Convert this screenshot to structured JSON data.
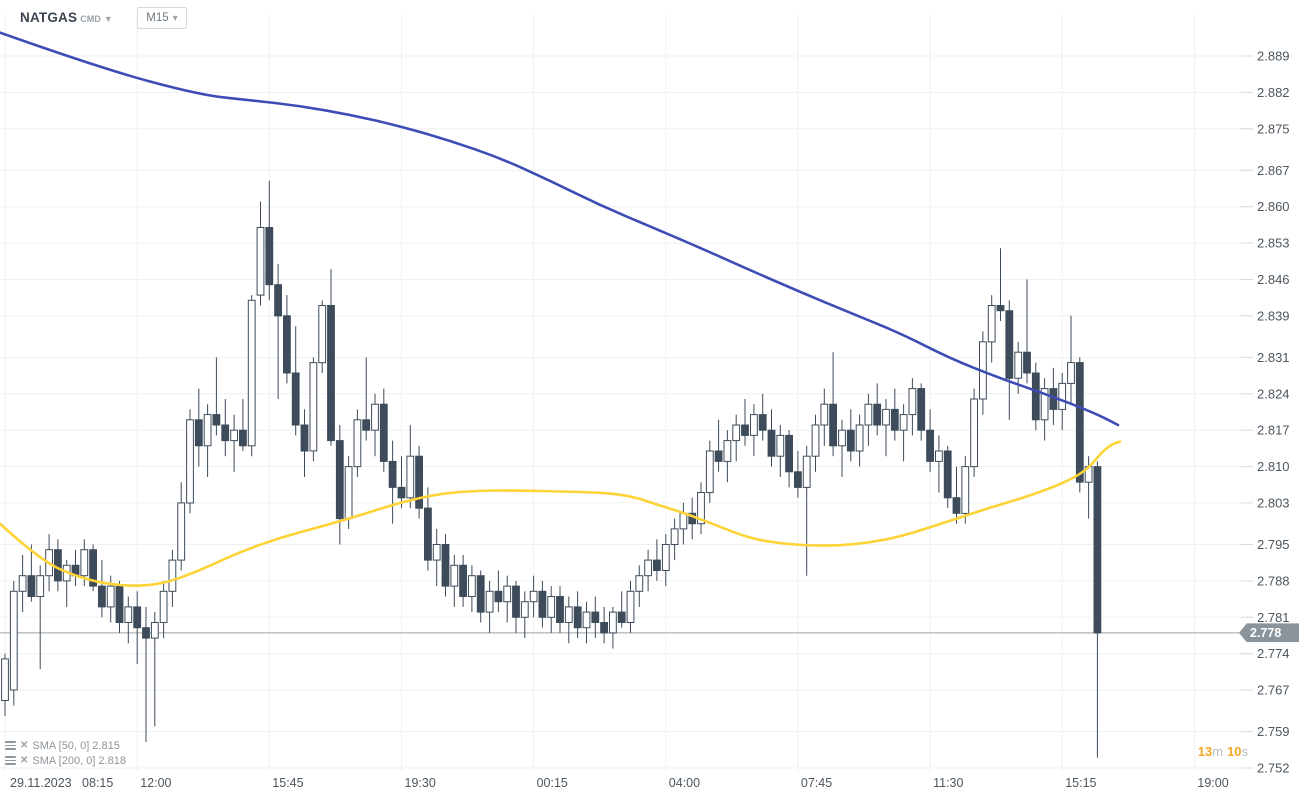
{
  "header": {
    "symbol": "NATGAS",
    "market": "CMD",
    "timeframe": "M15"
  },
  "legend": [
    {
      "label": "SMA [50, 0] 2.815"
    },
    {
      "label": "SMA [200, 0] 2.818"
    }
  ],
  "price_badge": "2.778",
  "countdown": {
    "minutes": "13",
    "minutes_unit": "m",
    "seconds": "10",
    "seconds_unit": "s"
  },
  "colors": {
    "candle": "#3d4b5a",
    "candle_bull_fill": "#ffffff",
    "sma50": "#fdd335",
    "sma200": "#3e4db5",
    "grid": "#eef1f4",
    "grid_stub": "#d8dbde",
    "axis_text": "#4c565f",
    "price_line": "#9aa2a8",
    "badge_bg": "#8b949b",
    "countdown_accent": "#f5a623",
    "legend_text": "#8d959c"
  },
  "chart_data": {
    "type": "candlestick",
    "title": "NATGAS CMD M15 candlestick chart with SMA(50) and SMA(200)",
    "instrument": "NATGAS",
    "timeframe": "M15",
    "current_price": 2.778,
    "y_range": [
      2.752,
      2.889
    ],
    "grid": true,
    "y_ticks": [
      "2.889",
      "2.882",
      "2.875",
      "2.867",
      "2.860",
      "2.853",
      "2.846",
      "2.839",
      "2.831",
      "2.824",
      "2.817",
      "2.810",
      "2.803",
      "2.795",
      "2.788",
      "2.781",
      "2.774",
      "2.767",
      "2.759",
      "2.752"
    ],
    "x_labels": [
      {
        "label": "29.11.2023  08:15",
        "candle_index": 0
      },
      {
        "label": "12:00",
        "candle_index": 15
      },
      {
        "label": "15:45",
        "candle_index": 30
      },
      {
        "label": "19:30",
        "candle_index": 45
      },
      {
        "label": "00:15",
        "candle_index": 60
      },
      {
        "label": "04:00",
        "candle_index": 75
      },
      {
        "label": "07:45",
        "candle_index": 90
      },
      {
        "label": "11:30",
        "candle_index": 105
      },
      {
        "label": "15:15",
        "candle_index": 120
      },
      {
        "label": "19:00",
        "candle_index": 135
      }
    ],
    "candles_format": [
      "open",
      "high",
      "low",
      "close"
    ],
    "candles": [
      [
        2.765,
        2.774,
        2.762,
        2.773
      ],
      [
        2.767,
        2.788,
        2.764,
        2.786
      ],
      [
        2.786,
        2.793,
        2.782,
        2.789
      ],
      [
        2.789,
        2.795,
        2.784,
        2.785
      ],
      [
        2.785,
        2.791,
        2.771,
        2.789
      ],
      [
        2.789,
        2.797,
        2.786,
        2.794
      ],
      [
        2.794,
        2.796,
        2.786,
        2.788
      ],
      [
        2.788,
        2.792,
        2.783,
        2.791
      ],
      [
        2.791,
        2.794,
        2.787,
        2.789
      ],
      [
        2.789,
        2.796,
        2.787,
        2.794
      ],
      [
        2.794,
        2.795,
        2.786,
        2.787
      ],
      [
        2.787,
        2.792,
        2.781,
        2.783
      ],
      [
        2.783,
        2.789,
        2.78,
        2.787
      ],
      [
        2.787,
        2.788,
        2.778,
        2.78
      ],
      [
        2.78,
        2.785,
        2.776,
        2.783
      ],
      [
        2.783,
        2.786,
        2.772,
        2.779
      ],
      [
        2.779,
        2.783,
        2.757,
        2.777
      ],
      [
        2.777,
        2.782,
        2.76,
        2.78
      ],
      [
        2.78,
        2.788,
        2.777,
        2.786
      ],
      [
        2.786,
        2.794,
        2.783,
        2.792
      ],
      [
        2.792,
        2.807,
        2.79,
        2.803
      ],
      [
        2.803,
        2.821,
        2.801,
        2.819
      ],
      [
        2.819,
        2.825,
        2.81,
        2.814
      ],
      [
        2.814,
        2.822,
        2.808,
        2.82
      ],
      [
        2.82,
        2.831,
        2.816,
        2.818
      ],
      [
        2.818,
        2.823,
        2.812,
        2.815
      ],
      [
        2.815,
        2.82,
        2.809,
        2.817
      ],
      [
        2.817,
        2.823,
        2.813,
        2.814
      ],
      [
        2.814,
        2.843,
        2.812,
        2.842
      ],
      [
        2.843,
        2.861,
        2.841,
        2.856
      ],
      [
        2.856,
        2.865,
        2.842,
        2.845
      ],
      [
        2.845,
        2.849,
        2.823,
        2.839
      ],
      [
        2.839,
        2.843,
        2.826,
        2.828
      ],
      [
        2.828,
        2.837,
        2.816,
        2.818
      ],
      [
        2.818,
        2.821,
        2.808,
        2.813
      ],
      [
        2.813,
        2.831,
        2.811,
        2.83
      ],
      [
        2.83,
        2.842,
        2.828,
        2.841
      ],
      [
        2.841,
        2.848,
        2.814,
        2.815
      ],
      [
        2.815,
        2.818,
        2.795,
        2.8
      ],
      [
        2.8,
        2.812,
        2.798,
        2.81
      ],
      [
        2.81,
        2.821,
        2.808,
        2.819
      ],
      [
        2.819,
        2.831,
        2.815,
        2.817
      ],
      [
        2.817,
        2.824,
        2.812,
        2.822
      ],
      [
        2.822,
        2.825,
        2.809,
        2.811
      ],
      [
        2.811,
        2.815,
        2.799,
        2.806
      ],
      [
        2.806,
        2.812,
        2.802,
        2.804
      ],
      [
        2.804,
        2.818,
        2.802,
        2.812
      ],
      [
        2.812,
        2.814,
        2.8,
        2.802
      ],
      [
        2.802,
        2.806,
        2.79,
        2.792
      ],
      [
        2.792,
        2.798,
        2.787,
        2.795
      ],
      [
        2.795,
        2.797,
        2.785,
        2.787
      ],
      [
        2.787,
        2.793,
        2.783,
        2.791
      ],
      [
        2.791,
        2.793,
        2.783,
        2.785
      ],
      [
        2.785,
        2.791,
        2.782,
        2.789
      ],
      [
        2.789,
        2.79,
        2.78,
        2.782
      ],
      [
        2.782,
        2.788,
        2.778,
        2.786
      ],
      [
        2.786,
        2.79,
        2.782,
        2.784
      ],
      [
        2.784,
        2.789,
        2.78,
        2.787
      ],
      [
        2.787,
        2.788,
        2.778,
        2.781
      ],
      [
        2.781,
        2.786,
        2.777,
        2.784
      ],
      [
        2.784,
        2.789,
        2.781,
        2.786
      ],
      [
        2.786,
        2.788,
        2.779,
        2.781
      ],
      [
        2.781,
        2.787,
        2.778,
        2.785
      ],
      [
        2.785,
        2.787,
        2.778,
        2.78
      ],
      [
        2.78,
        2.785,
        2.776,
        2.783
      ],
      [
        2.783,
        2.786,
        2.777,
        2.779
      ],
      [
        2.779,
        2.784,
        2.776,
        2.782
      ],
      [
        2.782,
        2.785,
        2.777,
        2.78
      ],
      [
        2.78,
        2.783,
        2.776,
        2.778
      ],
      [
        2.778,
        2.783,
        2.775,
        2.782
      ],
      [
        2.782,
        2.786,
        2.779,
        2.78
      ],
      [
        2.78,
        2.788,
        2.778,
        2.786
      ],
      [
        2.786,
        2.791,
        2.783,
        2.789
      ],
      [
        2.789,
        2.794,
        2.786,
        2.792
      ],
      [
        2.792,
        2.796,
        2.788,
        2.79
      ],
      [
        2.79,
        2.797,
        2.787,
        2.795
      ],
      [
        2.795,
        2.8,
        2.792,
        2.798
      ],
      [
        2.798,
        2.803,
        2.795,
        2.801
      ],
      [
        2.801,
        2.804,
        2.796,
        2.799
      ],
      [
        2.799,
        2.807,
        2.797,
        2.805
      ],
      [
        2.805,
        2.815,
        2.803,
        2.813
      ],
      [
        2.813,
        2.819,
        2.809,
        2.811
      ],
      [
        2.811,
        2.817,
        2.807,
        2.815
      ],
      [
        2.815,
        2.82,
        2.811,
        2.818
      ],
      [
        2.818,
        2.823,
        2.814,
        2.816
      ],
      [
        2.816,
        2.822,
        2.812,
        2.82
      ],
      [
        2.82,
        2.824,
        2.815,
        2.817
      ],
      [
        2.817,
        2.821,
        2.81,
        2.812
      ],
      [
        2.812,
        2.818,
        2.808,
        2.816
      ],
      [
        2.816,
        2.817,
        2.806,
        2.809
      ],
      [
        2.809,
        2.813,
        2.804,
        2.806
      ],
      [
        2.806,
        2.814,
        2.789,
        2.812
      ],
      [
        2.812,
        2.82,
        2.809,
        2.818
      ],
      [
        2.818,
        2.825,
        2.814,
        2.822
      ],
      [
        2.822,
        2.832,
        2.812,
        2.814
      ],
      [
        2.814,
        2.819,
        2.808,
        2.817
      ],
      [
        2.817,
        2.821,
        2.811,
        2.813
      ],
      [
        2.813,
        2.82,
        2.81,
        2.818
      ],
      [
        2.818,
        2.824,
        2.814,
        2.822
      ],
      [
        2.822,
        2.826,
        2.816,
        2.818
      ],
      [
        2.818,
        2.823,
        2.812,
        2.821
      ],
      [
        2.821,
        2.825,
        2.815,
        2.817
      ],
      [
        2.817,
        2.822,
        2.811,
        2.82
      ],
      [
        2.82,
        2.827,
        2.816,
        2.825
      ],
      [
        2.825,
        2.826,
        2.815,
        2.817
      ],
      [
        2.817,
        2.821,
        2.809,
        2.811
      ],
      [
        2.811,
        2.816,
        2.805,
        2.813
      ],
      [
        2.813,
        2.814,
        2.802,
        2.804
      ],
      [
        2.804,
        2.81,
        2.799,
        2.801
      ],
      [
        2.801,
        2.812,
        2.799,
        2.81
      ],
      [
        2.81,
        2.825,
        2.808,
        2.823
      ],
      [
        2.823,
        2.836,
        2.82,
        2.834
      ],
      [
        2.834,
        2.843,
        2.83,
        2.841
      ],
      [
        2.841,
        2.852,
        2.838,
        2.84
      ],
      [
        2.84,
        2.842,
        2.819,
        2.827
      ],
      [
        2.827,
        2.834,
        2.824,
        2.832
      ],
      [
        2.832,
        2.846,
        2.826,
        2.828
      ],
      [
        2.828,
        2.83,
        2.817,
        2.819
      ],
      [
        2.819,
        2.827,
        2.815,
        2.825
      ],
      [
        2.825,
        2.829,
        2.818,
        2.821
      ],
      [
        2.821,
        2.828,
        2.817,
        2.826
      ],
      [
        2.826,
        2.839,
        2.822,
        2.83
      ],
      [
        2.83,
        2.831,
        2.805,
        2.807
      ],
      [
        2.807,
        2.812,
        2.8,
        2.81
      ],
      [
        2.81,
        2.811,
        2.754,
        2.778
      ]
    ],
    "sma50": {
      "name": "SMA [50, 0]",
      "value": 2.815,
      "points": [
        [
          0,
          2.799
        ],
        [
          40,
          2.792
        ],
        [
          80,
          2.7885
        ],
        [
          120,
          2.787
        ],
        [
          160,
          2.7872
        ],
        [
          200,
          2.79
        ],
        [
          240,
          2.7936
        ],
        [
          280,
          2.7963
        ],
        [
          320,
          2.7984
        ],
        [
          360,
          2.8006
        ],
        [
          400,
          2.8031
        ],
        [
          440,
          2.8048
        ],
        [
          480,
          2.8054
        ],
        [
          520,
          2.8054
        ],
        [
          560,
          2.8052
        ],
        [
          600,
          2.805
        ],
        [
          630,
          2.8044
        ],
        [
          660,
          2.8025
        ],
        [
          690,
          2.8007
        ],
        [
          720,
          2.7984
        ],
        [
          750,
          2.7962
        ],
        [
          780,
          2.7952
        ],
        [
          810,
          2.7948
        ],
        [
          840,
          2.7948
        ],
        [
          870,
          2.7954
        ],
        [
          900,
          2.7965
        ],
        [
          930,
          2.7983
        ],
        [
          960,
          2.8002
        ],
        [
          990,
          2.8021
        ],
        [
          1020,
          2.8038
        ],
        [
          1050,
          2.8058
        ],
        [
          1075,
          2.8079
        ],
        [
          1090,
          2.81
        ],
        [
          1102,
          2.8128
        ],
        [
          1112,
          2.8143
        ],
        [
          1120,
          2.8148
        ]
      ]
    },
    "sma200": {
      "name": "SMA [200, 0]",
      "value": 2.818,
      "points": [
        [
          0,
          2.8935
        ],
        [
          100,
          2.8867
        ],
        [
          200,
          2.8815
        ],
        [
          250,
          2.8805
        ],
        [
          300,
          2.8794
        ],
        [
          350,
          2.8777
        ],
        [
          400,
          2.8755
        ],
        [
          450,
          2.8727
        ],
        [
          500,
          2.8694
        ],
        [
          550,
          2.865
        ],
        [
          600,
          2.8603
        ],
        [
          650,
          2.8562
        ],
        [
          700,
          2.8521
        ],
        [
          750,
          2.8478
        ],
        [
          800,
          2.8436
        ],
        [
          850,
          2.8396
        ],
        [
          900,
          2.8357
        ],
        [
          950,
          2.8308
        ],
        [
          1000,
          2.827
        ],
        [
          1040,
          2.8243
        ],
        [
          1075,
          2.8218
        ],
        [
          1100,
          2.8198
        ],
        [
          1118,
          2.818
        ]
      ]
    }
  }
}
